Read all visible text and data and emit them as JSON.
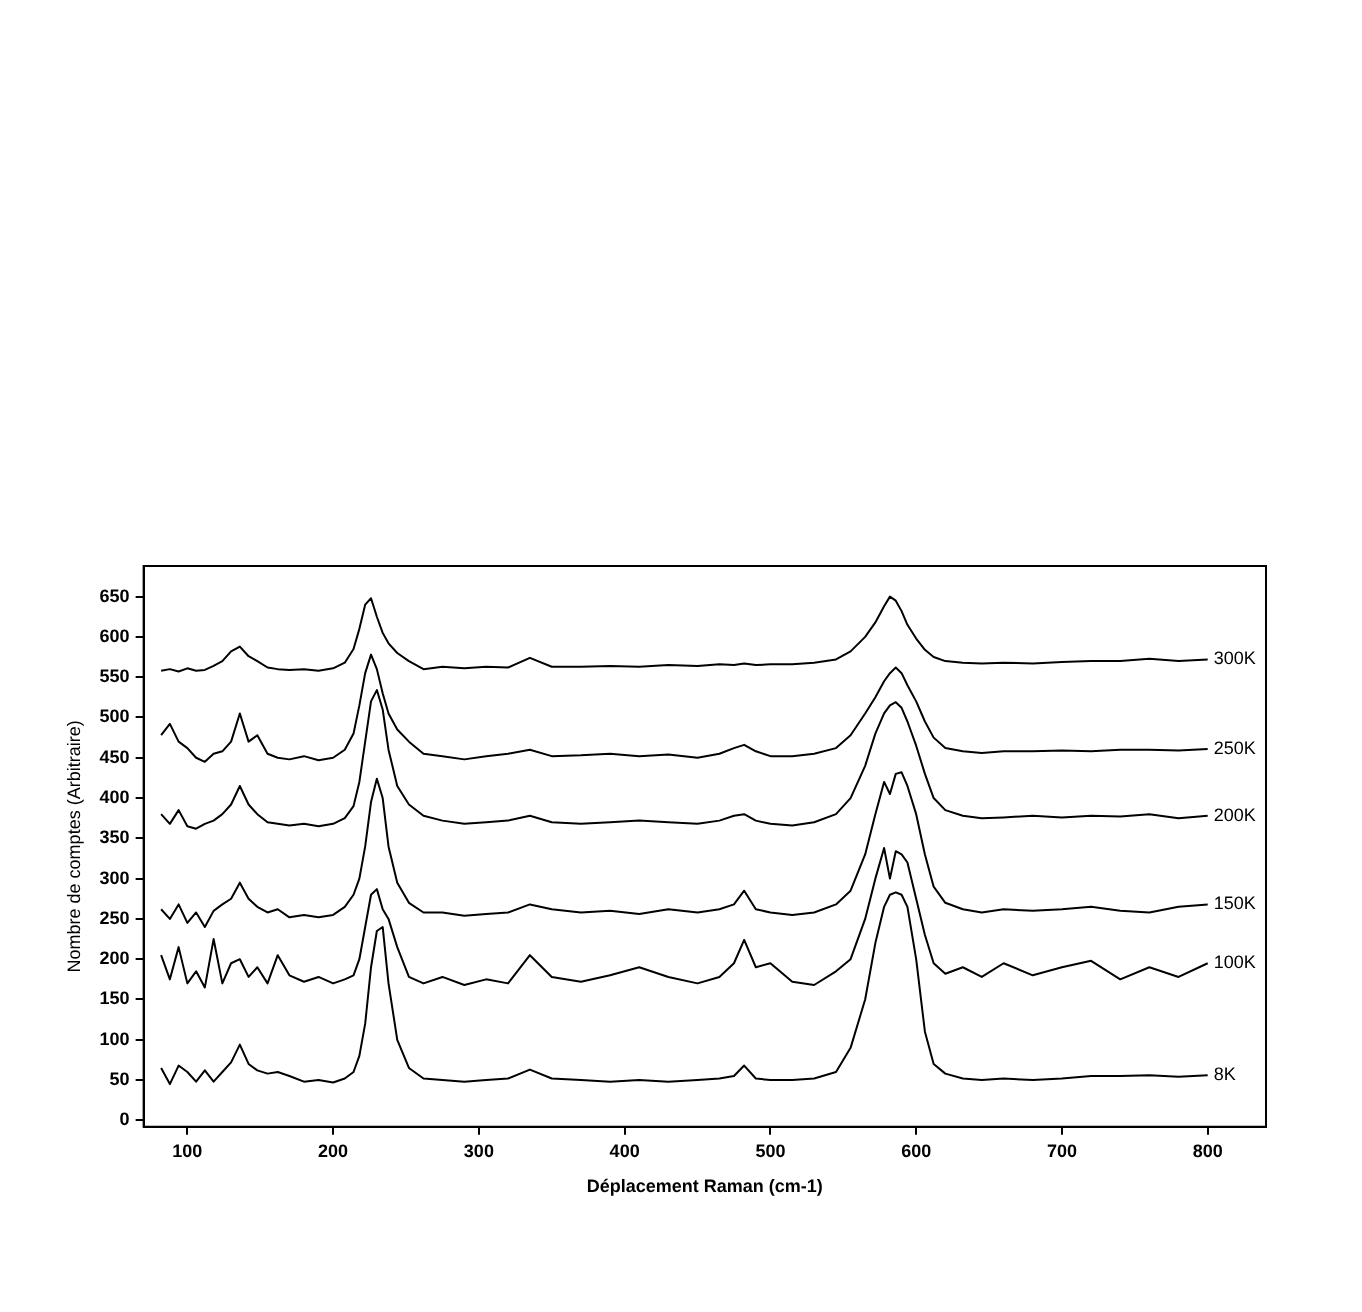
{
  "chart_data": {
    "type": "line",
    "xlabel": "Déplacement Raman (cm-1)",
    "ylabel": "Nombre de comptes (Arbitraire)",
    "x": [
      82,
      88,
      94,
      100,
      106,
      112,
      118,
      124,
      130,
      136,
      142,
      148,
      155,
      162,
      170,
      180,
      190,
      200,
      208,
      214,
      218,
      222,
      226,
      230,
      234,
      238,
      244,
      252,
      262,
      275,
      290,
      305,
      320,
      335,
      350,
      370,
      390,
      410,
      430,
      450,
      465,
      475,
      482,
      490,
      500,
      515,
      530,
      545,
      555,
      565,
      572,
      578,
      582,
      586,
      590,
      594,
      600,
      606,
      612,
      620,
      632,
      645,
      660,
      680,
      700,
      720,
      740,
      760,
      780,
      800
    ],
    "xlim": [
      70,
      840
    ],
    "xticks": [
      100,
      200,
      300,
      400,
      500,
      600,
      700,
      800
    ],
    "ylim": [
      -8,
      688
    ],
    "yticks": [
      0,
      50,
      100,
      150,
      200,
      250,
      300,
      350,
      400,
      450,
      500,
      550,
      600,
      650
    ],
    "grid": false,
    "legend": false,
    "marker": "none",
    "line_style": "solid",
    "series": [
      {
        "name": "300K",
        "color": "#000000",
        "values": [
          558,
          560,
          557,
          561,
          558,
          559,
          564,
          570,
          582,
          588,
          576,
          570,
          562,
          560,
          559,
          560,
          558,
          561,
          568,
          585,
          610,
          640,
          648,
          625,
          605,
          592,
          580,
          570,
          560,
          563,
          561,
          563,
          562,
          574,
          563,
          563,
          564,
          563,
          565,
          564,
          566,
          565,
          567,
          565,
          566,
          566,
          568,
          572,
          582,
          600,
          618,
          638,
          650,
          645,
          632,
          615,
          598,
          584,
          575,
          570,
          568,
          567,
          568,
          567,
          569,
          570,
          570,
          573,
          570,
          572
        ]
      },
      {
        "name": "250K",
        "color": "#000000",
        "values": [
          478,
          492,
          470,
          462,
          450,
          445,
          455,
          458,
          470,
          505,
          470,
          478,
          455,
          450,
          448,
          452,
          447,
          450,
          460,
          480,
          515,
          555,
          578,
          560,
          530,
          505,
          485,
          470,
          455,
          452,
          448,
          452,
          455,
          460,
          452,
          453,
          455,
          452,
          454,
          450,
          455,
          462,
          466,
          458,
          452,
          452,
          455,
          462,
          478,
          505,
          525,
          545,
          555,
          562,
          555,
          540,
          520,
          495,
          475,
          462,
          458,
          456,
          458,
          458,
          459,
          458,
          460,
          460,
          459,
          461
        ]
      },
      {
        "name": "200K",
        "color": "#000000",
        "values": [
          380,
          368,
          385,
          365,
          362,
          368,
          372,
          380,
          392,
          415,
          392,
          380,
          370,
          368,
          366,
          368,
          365,
          368,
          375,
          390,
          420,
          470,
          520,
          534,
          510,
          460,
          415,
          392,
          378,
          372,
          368,
          370,
          372,
          378,
          370,
          368,
          370,
          372,
          370,
          368,
          372,
          378,
          380,
          372,
          368,
          366,
          370,
          380,
          400,
          440,
          480,
          505,
          515,
          519,
          512,
          495,
          465,
          430,
          400,
          385,
          378,
          375,
          376,
          378,
          376,
          378,
          377,
          380,
          375,
          378
        ]
      },
      {
        "name": "150K",
        "color": "#000000",
        "values": [
          262,
          250,
          268,
          245,
          258,
          240,
          260,
          268,
          275,
          295,
          275,
          265,
          258,
          262,
          252,
          255,
          252,
          255,
          265,
          280,
          300,
          340,
          395,
          424,
          400,
          340,
          295,
          270,
          258,
          258,
          254,
          256,
          258,
          268,
          262,
          258,
          260,
          256,
          262,
          258,
          262,
          268,
          285,
          262,
          258,
          255,
          258,
          268,
          285,
          330,
          380,
          420,
          405,
          430,
          432,
          415,
          380,
          330,
          290,
          270,
          262,
          258,
          262,
          260,
          262,
          265,
          260,
          258,
          265,
          268
        ]
      },
      {
        "name": "100K",
        "color": "#000000",
        "values": [
          205,
          175,
          215,
          170,
          185,
          165,
          225,
          170,
          195,
          200,
          178,
          190,
          170,
          205,
          180,
          172,
          178,
          170,
          175,
          180,
          200,
          240,
          280,
          287,
          262,
          250,
          215,
          178,
          170,
          178,
          168,
          175,
          170,
          205,
          178,
          172,
          180,
          190,
          178,
          170,
          178,
          195,
          224,
          190,
          195,
          172,
          168,
          185,
          200,
          250,
          300,
          338,
          300,
          334,
          330,
          320,
          275,
          230,
          195,
          182,
          190,
          178,
          195,
          180,
          190,
          198,
          175,
          190,
          178,
          195
        ]
      },
      {
        "name": "8K",
        "color": "#000000",
        "values": [
          65,
          45,
          68,
          60,
          48,
          62,
          48,
          60,
          72,
          94,
          70,
          62,
          58,
          60,
          55,
          48,
          50,
          47,
          52,
          60,
          80,
          120,
          190,
          235,
          240,
          170,
          100,
          65,
          52,
          50,
          48,
          50,
          52,
          63,
          52,
          50,
          48,
          50,
          48,
          50,
          52,
          55,
          68,
          52,
          50,
          50,
          52,
          60,
          90,
          150,
          220,
          265,
          280,
          283,
          280,
          265,
          200,
          110,
          70,
          58,
          52,
          50,
          52,
          50,
          52,
          55,
          55,
          56,
          54,
          56
        ]
      }
    ]
  }
}
